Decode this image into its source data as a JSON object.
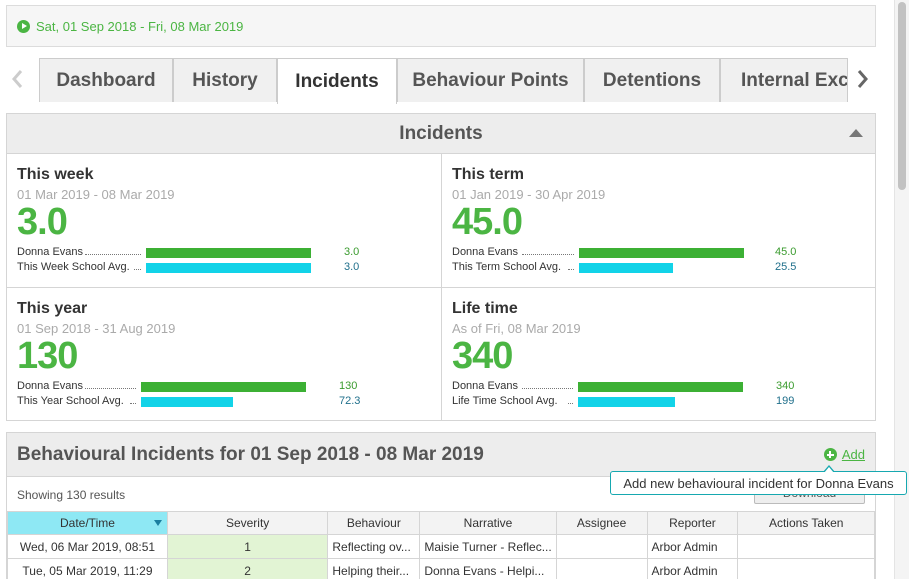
{
  "date_range": {
    "text": "Sat, 01 Sep 2018 - Fri, 08 Mar 2019"
  },
  "tabs": [
    {
      "label": "Dashboard",
      "active": false
    },
    {
      "label": "History",
      "active": false
    },
    {
      "label": "Incidents",
      "active": true
    },
    {
      "label": "Behaviour Points",
      "active": false
    },
    {
      "label": "Detentions",
      "active": false
    },
    {
      "label": "Internal Exc",
      "active": false
    }
  ],
  "incidents_panel": {
    "title": "Incidents",
    "stats": [
      {
        "title": "This week",
        "range": "01 Mar 2019 - 08 Mar 2019",
        "value": "3.0",
        "rows": [
          {
            "label": "Donna Evans",
            "value": "3.0",
            "fraction": 1.0
          },
          {
            "label": "This Week School Avg.",
            "value": "3.0",
            "fraction": 1.0
          }
        ]
      },
      {
        "title": "This term",
        "range": "01 Jan 2019 - 30 Apr 2019",
        "value": "45.0",
        "rows": [
          {
            "label": "Donna Evans",
            "value": "45.0",
            "fraction": 1.0
          },
          {
            "label": "This Term School Avg.",
            "value": "25.5",
            "fraction": 0.567
          }
        ]
      },
      {
        "title": "This year",
        "range": "01 Sep 2018 - 31 Aug 2019",
        "value": "130",
        "rows": [
          {
            "label": "Donna Evans",
            "value": "130",
            "fraction": 1.0
          },
          {
            "label": "This Year School Avg.",
            "value": "72.3",
            "fraction": 0.556
          }
        ]
      },
      {
        "title": "Life time",
        "range": "As of Fri, 08 Mar 2019",
        "value": "340",
        "rows": [
          {
            "label": "Donna Evans",
            "value": "340",
            "fraction": 1.0
          },
          {
            "label": "Life Time School Avg.",
            "value": "199",
            "fraction": 0.585
          }
        ]
      }
    ]
  },
  "behavioural_panel": {
    "title": "Behavioural Incidents for 01 Sep 2018 - 08 Mar 2019",
    "add_label": "Add",
    "tooltip": "Add new behavioural incident for Donna Evans",
    "showing": "Showing 130 results",
    "download_label": "Download",
    "columns": [
      "Date/Time",
      "Severity",
      "Behaviour",
      "Narrative",
      "Assignee",
      "Reporter",
      "Actions Taken"
    ],
    "rows": [
      [
        "Wed, 06 Mar 2019, 08:51",
        "1",
        "Reflecting ov...",
        "Maisie Turner - Reflec...",
        "",
        "Arbor Admin",
        ""
      ],
      [
        "Tue, 05 Mar 2019, 11:29",
        "2",
        "Helping their...",
        "Donna Evans - Helpi...",
        "",
        "Arbor Admin",
        ""
      ]
    ]
  },
  "colors": {
    "green": "#4bb543",
    "bar_green": "#3cb034",
    "bar_cyan": "#12d3e8",
    "sorted_header": "#8ee8f4",
    "tooltip_border": "#16a8b0"
  }
}
